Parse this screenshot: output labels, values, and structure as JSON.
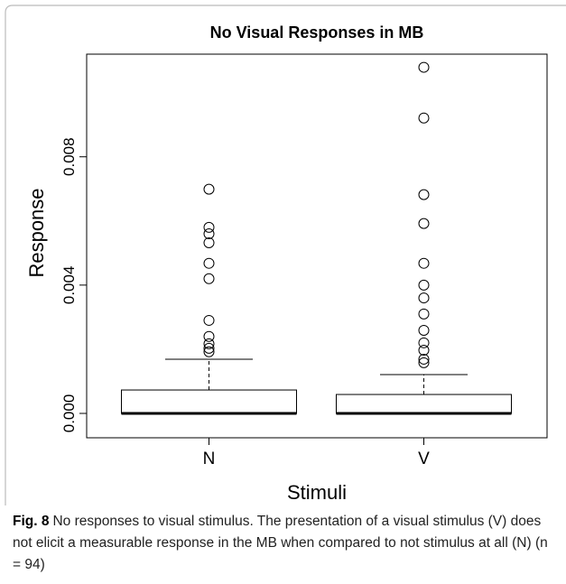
{
  "chart_data": {
    "type": "box",
    "title": "No Visual Responses in MB",
    "x_label": "Stimuli",
    "y_label": "Response",
    "categories": [
      "N",
      "V"
    ],
    "boxes": [
      {
        "min": 0,
        "q1": 0,
        "median": 0,
        "q3": 0.00073,
        "max": 0.00169,
        "outliers": [
          0.00699,
          0.0058,
          0.0056,
          0.00532,
          0.00468,
          0.0042,
          0.0029,
          0.0024,
          0.00217,
          0.00203,
          0.00192
        ]
      },
      {
        "min": 0,
        "q1": 0,
        "median": 0,
        "q3": 0.00059,
        "max": 0.00121,
        "outliers": [
          0.01079,
          0.00921,
          0.00682,
          0.00592,
          0.00468,
          0.004,
          0.0036,
          0.0031,
          0.00259,
          0.0022,
          0.00197,
          0.00169,
          0.00158
        ]
      }
    ],
    "ylim": [
      -0.00076,
      0.0112
    ],
    "yticks": [
      {
        "value": 0,
        "label": "0.000"
      },
      0.004,
      0.008
    ]
  },
  "caption": {
    "label": "Fig. 8",
    "text": "No responses to visual stimulus. The presentation of a visual stimulus (V) does not elicit a measurable response in the MB when compared to not stimulus at all (N) (n = 94)"
  }
}
